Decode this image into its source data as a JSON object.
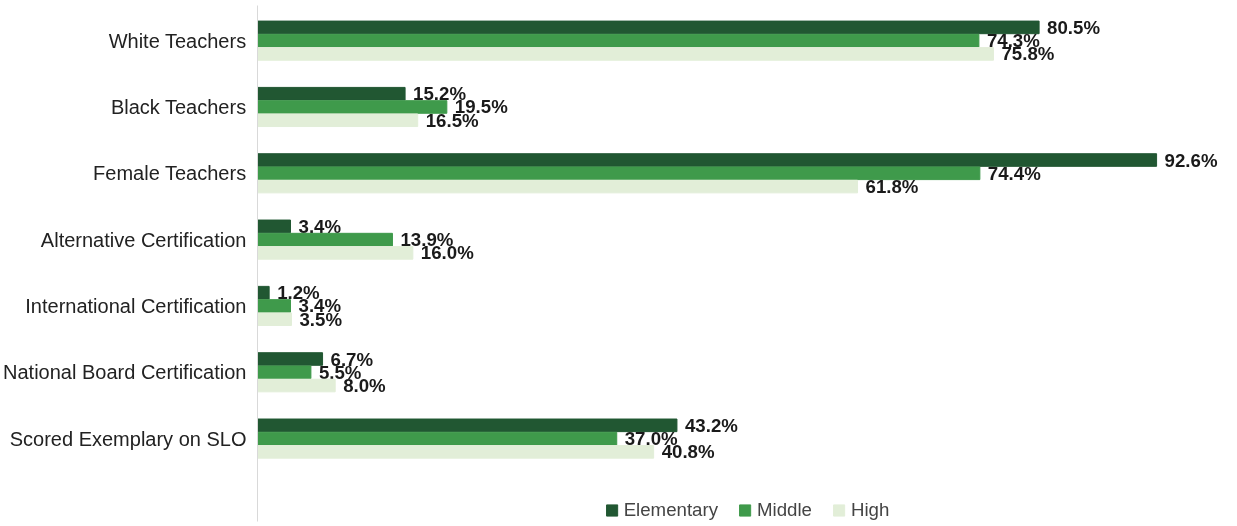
{
  "chart_data": {
    "type": "bar",
    "orientation": "horizontal",
    "legend": "bottom",
    "grid": false,
    "categories": [
      "White Teachers",
      "Black Teachers",
      "Female Teachers",
      "Alternative Certification",
      "International Certification",
      "National Board Certification",
      "Scored Exemplary on SLO"
    ],
    "series": [
      {
        "name": "Elementary",
        "color": "#215732",
        "values": [
          80.5,
          15.2,
          92.6,
          3.4,
          1.2,
          6.7,
          43.2
        ],
        "value_labels": [
          "80.5%",
          "15.2%",
          "92.6%",
          "3.4%",
          "1.2%",
          "6.7%",
          "43.2%"
        ]
      },
      {
        "name": "Middle",
        "color": "#3f9a4b",
        "values": [
          74.3,
          19.5,
          74.4,
          13.9,
          3.4,
          5.5,
          37.0
        ],
        "value_labels": [
          "74.3%",
          "19.5%",
          "74.4%",
          "13.9%",
          "3.4%",
          "5.5%",
          "37.0%"
        ]
      },
      {
        "name": "High",
        "color": "#e2eed8",
        "values": [
          75.8,
          16.5,
          61.8,
          16.0,
          3.5,
          8.0,
          40.8
        ],
        "value_labels": [
          "75.8%",
          "16.5%",
          "61.8%",
          "16.0%",
          "3.5%",
          "8.0%",
          "40.8%"
        ]
      }
    ]
  }
}
